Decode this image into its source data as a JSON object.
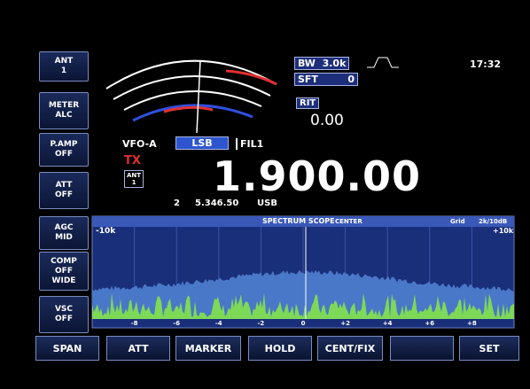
{
  "side_buttons": [
    {
      "lines": [
        "ANT",
        "1"
      ]
    },
    {
      "lines": [
        "METER",
        "ALC"
      ]
    },
    {
      "lines": [
        "P.AMP",
        "OFF"
      ]
    },
    {
      "lines": [
        "ATT",
        "OFF"
      ]
    },
    {
      "lines": [
        "AGC",
        "MID"
      ]
    },
    {
      "lines": [
        "COMP",
        "OFF",
        "WIDE"
      ]
    },
    {
      "lines": [
        "VSC",
        "OFF"
      ]
    }
  ],
  "status": {
    "bw_label": "BW",
    "bw_value": "3.0k",
    "sft_label": "SFT",
    "sft_value": "0",
    "rit_label": "RIT",
    "rit_value": "0.00",
    "clock": "17:32"
  },
  "vfo": {
    "name": "VFO-A",
    "mode": "LSB",
    "filter": "FIL1",
    "tx": "TX",
    "ant_label": "ANT",
    "ant_value": "1",
    "frequency": "1.900.00",
    "sub_index": "2",
    "sub_frequency": "5.346.50",
    "sub_mode": "USB"
  },
  "scope": {
    "left": "-10k",
    "title": "SPECTRUM SCOPE",
    "mode": "CENTER",
    "grid": "Grid",
    "scale": "2k/10dB",
    "right": "+10k",
    "ticks": [
      "-8",
      "-6",
      "-4",
      "-2",
      "0",
      "+2",
      "+4",
      "+6",
      "+8"
    ]
  },
  "function_keys": [
    "SPAN",
    "ATT",
    "MARKER",
    "HOLD",
    "CENT/FIX",
    "SET"
  ]
}
